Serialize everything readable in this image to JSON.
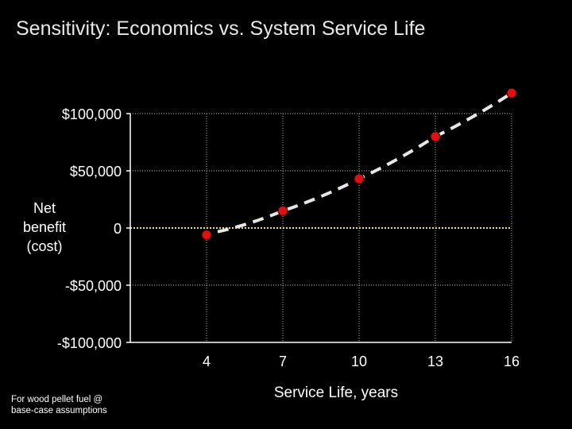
{
  "page": {
    "title": "Sensitivity: Economics vs. System Service Life",
    "footnote": [
      "For wood pellet fuel @",
      "base-case assumptions"
    ]
  },
  "chart_data": {
    "type": "line",
    "xlabel": "Service Life, years",
    "ylabel_lines": [
      "Net",
      "benefit",
      "(cost)"
    ],
    "x_ticks": [
      4,
      7,
      10,
      13,
      16
    ],
    "y_ticks": [
      {
        "value": 100000,
        "label": "$100,000"
      },
      {
        "value": 50000,
        "label": "$50,000"
      },
      {
        "value": 0,
        "label": "0"
      },
      {
        "value": -50000,
        "label": "-$50,000"
      },
      {
        "value": -100000,
        "label": "-$100,000"
      }
    ],
    "xlim": [
      1,
      16
    ],
    "ylim": [
      -100000,
      100000
    ],
    "grid": true,
    "series": [
      {
        "points": [
          {
            "x": 4,
            "y": -6000
          },
          {
            "x": 7,
            "y": 15000
          },
          {
            "x": 10,
            "y": 43000
          },
          {
            "x": 13,
            "y": 80000
          },
          {
            "x": 16,
            "y": 118000
          }
        ],
        "marker_color": "#e01010",
        "trend_color": "#e6e6e6"
      }
    ],
    "zero_line_color": "#e8e070"
  }
}
